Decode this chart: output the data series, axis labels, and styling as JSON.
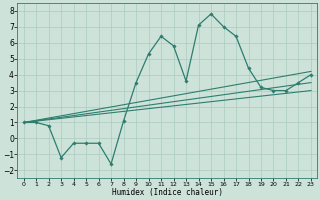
{
  "xlabel": "Humidex (Indice chaleur)",
  "bg_color": "#cde3da",
  "grid_color": "#aacbbf",
  "line_color": "#2e7d6e",
  "xlim": [
    -0.5,
    23.5
  ],
  "ylim": [
    -2.5,
    8.5
  ],
  "xticks": [
    0,
    1,
    2,
    3,
    4,
    5,
    6,
    7,
    8,
    9,
    10,
    11,
    12,
    13,
    14,
    15,
    16,
    17,
    18,
    19,
    20,
    21,
    22,
    23
  ],
  "yticks": [
    -2,
    -1,
    0,
    1,
    2,
    3,
    4,
    5,
    6,
    7,
    8
  ],
  "main_x": [
    0,
    1,
    2,
    3,
    4,
    5,
    6,
    7,
    8,
    9,
    10,
    11,
    12,
    13,
    14,
    15,
    16,
    17,
    18,
    19,
    20,
    21,
    22,
    23
  ],
  "main_y": [
    1.0,
    1.0,
    0.8,
    -1.2,
    -0.3,
    -0.3,
    -0.3,
    -1.6,
    1.1,
    3.5,
    5.3,
    6.4,
    5.8,
    3.6,
    7.1,
    7.8,
    7.0,
    6.4,
    4.4,
    3.2,
    3.0,
    3.0,
    3.5,
    4.0
  ],
  "line1_x": [
    0,
    23
  ],
  "line1_y": [
    1.0,
    3.0
  ],
  "line2_x": [
    0,
    23
  ],
  "line2_y": [
    1.0,
    3.5
  ],
  "line3_x": [
    0,
    23
  ],
  "line3_y": [
    1.0,
    4.2
  ]
}
